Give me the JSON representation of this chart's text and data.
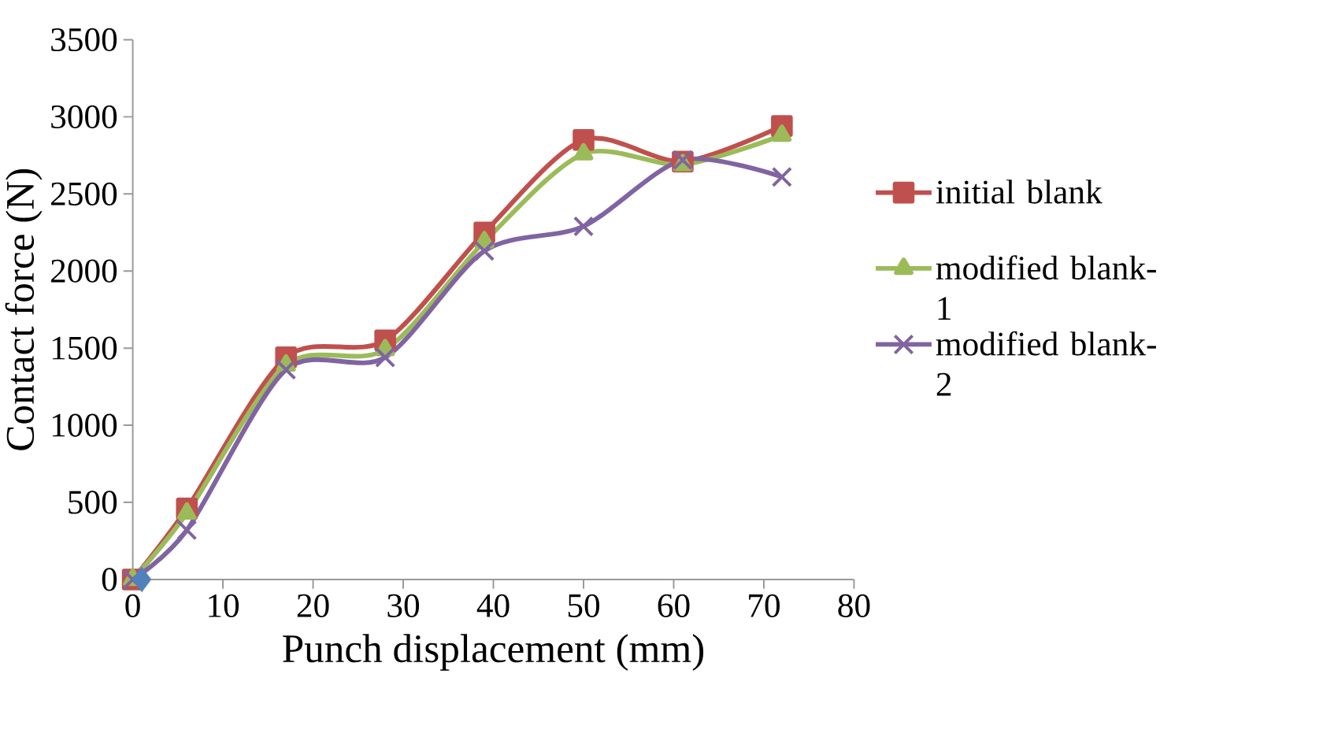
{
  "chart_data": {
    "type": "line",
    "xlabel": "Punch displacement (mm)",
    "ylabel": "Contact force (N)",
    "x": [
      0,
      6,
      17,
      28,
      39,
      50,
      61,
      72
    ],
    "series": [
      {
        "name": "initial blank",
        "color": "#c0504d",
        "marker": "square",
        "values": [
          0,
          460,
          1440,
          1550,
          2250,
          2850,
          2710,
          2940
        ]
      },
      {
        "name": "modified blank-1",
        "color": "#9bbb59",
        "marker": "triangle",
        "values": [
          0,
          430,
          1390,
          1490,
          2190,
          2760,
          2690,
          2880
        ]
      },
      {
        "name": "modified blank-2",
        "color": "#8064a2",
        "marker": "cross",
        "values": [
          0,
          320,
          1360,
          1440,
          2130,
          2290,
          2720,
          2610
        ]
      },
      {
        "type": "scatter",
        "color": "#4f81bd",
        "marker": "diamond",
        "x": [
          1
        ],
        "values": [
          0
        ]
      }
    ],
    "xlim": [
      0,
      80
    ],
    "xticks": [
      0,
      10,
      20,
      30,
      40,
      50,
      60,
      70,
      80
    ],
    "ylim": [
      0,
      3500
    ],
    "yticks": [
      0,
      500,
      1000,
      1500,
      2000,
      2500,
      3000,
      3500
    ],
    "grid": false,
    "legend": "right"
  }
}
